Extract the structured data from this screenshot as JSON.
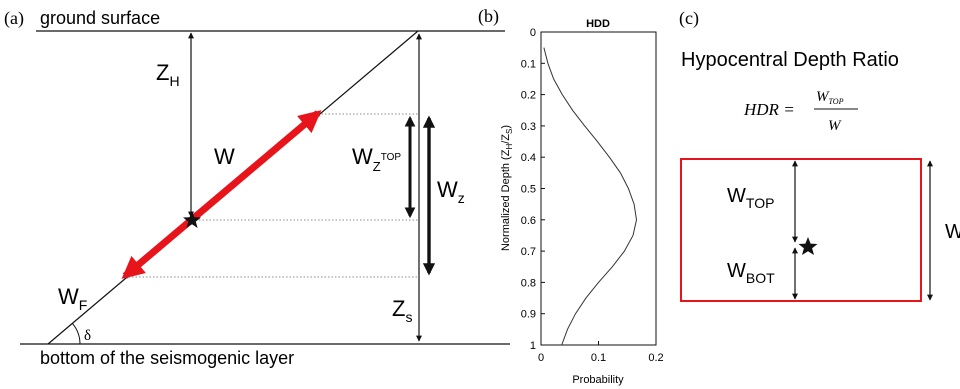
{
  "panel_a": {
    "tag": "(a)",
    "top_label": "ground surface",
    "bottom_label": "bottom of the seismogenic layer",
    "zh_main": "Z",
    "zh_sub": "H",
    "w_label": "W",
    "wf_main": "W",
    "wf_sub": "F",
    "wztop_main": "W",
    "wztop_sub": "Z",
    "wztop_sup": "TOP",
    "wz_main": "W",
    "wz_sub": "z",
    "zs_main": "Z",
    "zs_sub": "s",
    "delta": "δ",
    "colors": {
      "fault_segment": "#e8141b",
      "line": "#111111"
    }
  },
  "panel_b": {
    "tag": "(b)",
    "title": "HDD",
    "ylabel": "Normalized Depth (Z_H/Z_S)",
    "ylabel_parts": {
      "main": "Normalized Depth (Z",
      "s1": "H",
      "mid": "/Z",
      "s2": "S",
      "end": ")"
    },
    "xlabel": "Probability",
    "xticks": [
      "0",
      "0.1",
      "0.2"
    ],
    "yticks": [
      "0",
      "0.1",
      "0.2",
      "0.3",
      "0.4",
      "0.5",
      "0.6",
      "0.7",
      "0.8",
      "0.9",
      "1"
    ]
  },
  "panel_c": {
    "tag": "(c)",
    "title": "Hypocentral Depth Ratio",
    "formula_lhs": "HDR =",
    "formula_num_main": "W",
    "formula_num_sub": "TOP",
    "formula_den": "W",
    "wtop_main": "W",
    "wtop_sub": "TOP",
    "wbot_main": "W",
    "wbot_sub": "BOT",
    "w_label": "W",
    "colors": {
      "rupture_box": "#e8141b"
    }
  },
  "chart_data": {
    "type": "line",
    "title": "HDD",
    "xlabel": "Probability",
    "ylabel": "Normalized Depth (Z_H/Z_S)",
    "xlim": [
      0,
      0.2
    ],
    "ylim": [
      0,
      1
    ],
    "y_axis_reversed": true,
    "grid": false,
    "series": [
      {
        "y": [
          0.05,
          0.1,
          0.15,
          0.2,
          0.25,
          0.3,
          0.35,
          0.4,
          0.45,
          0.5,
          0.55,
          0.6,
          0.65,
          0.7,
          0.75,
          0.8,
          0.85,
          0.9,
          0.95,
          1.0
        ],
        "x": [
          0.005,
          0.012,
          0.022,
          0.037,
          0.055,
          0.076,
          0.098,
          0.119,
          0.138,
          0.152,
          0.162,
          0.166,
          0.16,
          0.145,
          0.124,
          0.1,
          0.078,
          0.06,
          0.046,
          0.036
        ]
      }
    ]
  }
}
